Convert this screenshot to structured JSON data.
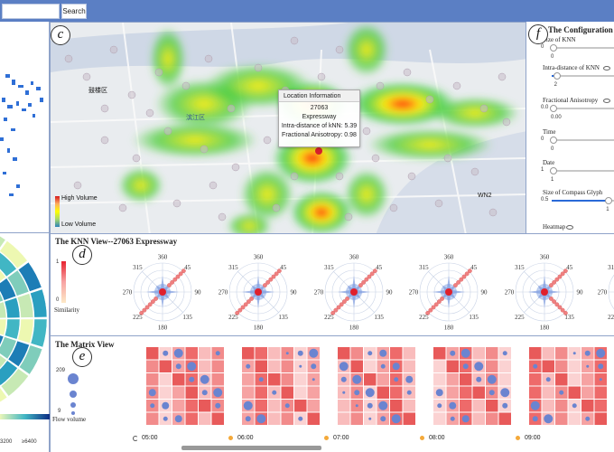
{
  "search": {
    "placeholder": "",
    "button_label": "Search"
  },
  "badges": {
    "c": "c",
    "d": "d",
    "e": "e",
    "f": "f"
  },
  "map": {
    "place_labels": [
      "滨江区",
      "鼓楼区",
      "WN2"
    ],
    "legend_high": "High Volume",
    "legend_low": "Low Volume",
    "colors": {
      "high": "#d7191c",
      "mid": "#ffff00",
      "low": "#2b83ba"
    }
  },
  "tooltip": {
    "title": "Location Information",
    "id": "27063",
    "name": "Expressway",
    "intra": "Intra-distance of kNN: 5.39",
    "fa": "Fractional Anisotropy: 0.98"
  },
  "config": {
    "title": "The Configuration",
    "items": [
      {
        "label": "Size of KNN",
        "min": "0",
        "value": "0",
        "fill": 0.0,
        "eye": false
      },
      {
        "label": "Intra-distance of KNN",
        "min": "",
        "value": "2",
        "fill": 0.05,
        "eye": true
      },
      {
        "label": "Fractional Anisotropy",
        "min": "0.0",
        "value": "0.00",
        "fill": 0.0,
        "eye": true
      },
      {
        "label": "Time",
        "min": "0",
        "value": "0",
        "fill": 0.0,
        "eye": false
      },
      {
        "label": "Date",
        "min": "1",
        "value": "1",
        "fill": 0.0,
        "eye": false
      },
      {
        "label": "Size of Compass Glyph",
        "min": "0.5",
        "value": "1",
        "fill": 0.85,
        "eye": false
      }
    ],
    "heatmap_label": "Heatmap"
  },
  "knn": {
    "title": "The KNN View--27063 Expressway",
    "legend_max": "1",
    "legend_min": "0",
    "legend_label": "Similarity",
    "angle_labels": [
      "360",
      "45",
      "90",
      "135",
      "180",
      "225",
      "270",
      "315"
    ]
  },
  "matrix": {
    "title": "The Matrix View",
    "legend_max": "209",
    "legend_min": "9",
    "legend_label": "Flow volume",
    "times": [
      "05:00",
      "06:00",
      "07:00",
      "08:00",
      "09:00"
    ]
  },
  "left_legend": {
    "values": [
      "3200",
      "≥6400"
    ]
  }
}
